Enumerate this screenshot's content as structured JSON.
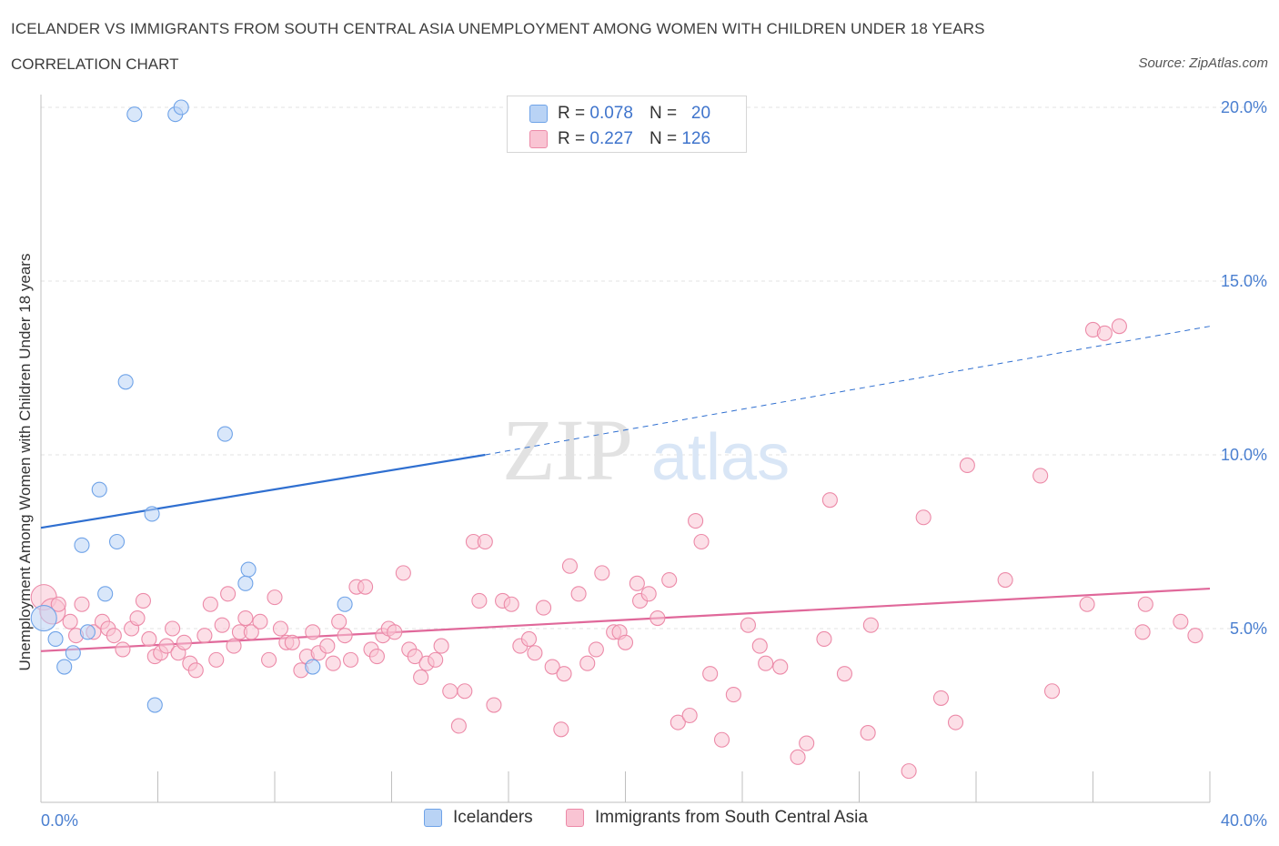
{
  "title": "ICELANDER VS IMMIGRANTS FROM SOUTH CENTRAL ASIA UNEMPLOYMENT AMONG WOMEN WITH CHILDREN UNDER 18 YEARS",
  "subtitle": "CORRELATION CHART",
  "source": "Source: ZipAtlas.com",
  "watermark": {
    "zip": "ZIP",
    "atlas": "atlas"
  },
  "legend": {
    "rows": [
      {
        "r_label": "R =",
        "r_value": "0.078",
        "n_label": "N =",
        "n_value": "20",
        "color": "#b9d3f5"
      },
      {
        "r_label": "R =",
        "r_value": "0.227",
        "n_label": "N =",
        "n_value": "126",
        "color": "#f9c4d3"
      }
    ]
  },
  "bottom_legend": [
    "Icelanders",
    "Immigrants from South Central Asia"
  ],
  "chart_data": {
    "type": "scatter",
    "ylabel": "Unemployment Among Women with Children Under 18 years",
    "xlim": [
      0,
      40
    ],
    "ylim": [
      0,
      20
    ],
    "x_tick_labels": [
      "0.0%",
      "40.0%"
    ],
    "y_tick_labels": [
      "5.0%",
      "10.0%",
      "15.0%",
      "20.0%"
    ],
    "y_ticks": [
      5,
      10,
      15,
      20
    ],
    "x_minor_ticks": [
      4,
      8,
      12,
      16,
      20,
      24,
      28,
      32,
      36,
      40
    ],
    "grid": true,
    "series": [
      {
        "name": "Icelanders",
        "color": "#6fa3e8",
        "fill": "#b9d3f5",
        "trend": {
          "x0": 0,
          "y0": 7.9,
          "x1": 15.2,
          "y1": 10.0,
          "dash_x1": 40,
          "dash_y1": 13.7,
          "color": "#2f6fd0"
        },
        "points": [
          [
            3.2,
            19.8
          ],
          [
            4.6,
            19.8
          ],
          [
            4.8,
            20.0
          ],
          [
            2.9,
            12.1
          ],
          [
            6.3,
            10.6
          ],
          [
            2.0,
            9.0
          ],
          [
            3.8,
            8.3
          ],
          [
            1.4,
            7.4
          ],
          [
            2.6,
            7.5
          ],
          [
            7.1,
            6.7
          ],
          [
            7.0,
            6.3
          ],
          [
            2.2,
            6.0
          ],
          [
            10.4,
            5.7
          ],
          [
            0.1,
            5.3
          ],
          [
            1.6,
            4.9
          ],
          [
            0.5,
            4.7
          ],
          [
            1.1,
            4.3
          ],
          [
            0.8,
            3.9
          ],
          [
            9.3,
            3.9
          ],
          [
            3.9,
            2.8
          ]
        ]
      },
      {
        "name": "Immigrants from South Central Asia",
        "color": "#ec8aa8",
        "fill": "#f9c4d3",
        "trend": {
          "x0": 0,
          "y0": 4.35,
          "x1": 40,
          "y1": 6.15,
          "color": "#e0689a"
        },
        "points": [
          [
            0.1,
            5.9
          ],
          [
            0.4,
            5.5
          ],
          [
            0.6,
            5.7
          ],
          [
            1.0,
            5.2
          ],
          [
            1.4,
            5.7
          ],
          [
            1.2,
            4.8
          ],
          [
            1.8,
            4.9
          ],
          [
            2.1,
            5.2
          ],
          [
            2.3,
            5.0
          ],
          [
            2.5,
            4.8
          ],
          [
            2.8,
            4.4
          ],
          [
            3.1,
            5.0
          ],
          [
            3.3,
            5.3
          ],
          [
            3.5,
            5.8
          ],
          [
            3.7,
            4.7
          ],
          [
            3.9,
            4.2
          ],
          [
            4.1,
            4.3
          ],
          [
            4.3,
            4.5
          ],
          [
            4.5,
            5.0
          ],
          [
            4.7,
            4.3
          ],
          [
            4.9,
            4.6
          ],
          [
            5.1,
            4.0
          ],
          [
            5.3,
            3.8
          ],
          [
            5.6,
            4.8
          ],
          [
            5.8,
            5.7
          ],
          [
            6.0,
            4.1
          ],
          [
            6.2,
            5.1
          ],
          [
            6.4,
            6.0
          ],
          [
            6.6,
            4.5
          ],
          [
            6.8,
            4.9
          ],
          [
            7.0,
            5.3
          ],
          [
            7.2,
            4.9
          ],
          [
            7.5,
            5.2
          ],
          [
            7.8,
            4.1
          ],
          [
            8.0,
            5.9
          ],
          [
            8.2,
            5.0
          ],
          [
            8.4,
            4.6
          ],
          [
            8.6,
            4.6
          ],
          [
            8.9,
            3.8
          ],
          [
            9.1,
            4.2
          ],
          [
            9.3,
            4.9
          ],
          [
            9.5,
            4.3
          ],
          [
            9.8,
            4.5
          ],
          [
            10.0,
            4.0
          ],
          [
            10.2,
            5.2
          ],
          [
            10.4,
            4.8
          ],
          [
            10.6,
            4.1
          ],
          [
            10.8,
            6.2
          ],
          [
            11.1,
            6.2
          ],
          [
            11.3,
            4.4
          ],
          [
            11.5,
            4.2
          ],
          [
            11.7,
            4.8
          ],
          [
            11.9,
            5.0
          ],
          [
            12.1,
            4.9
          ],
          [
            12.4,
            6.6
          ],
          [
            12.6,
            4.4
          ],
          [
            12.8,
            4.2
          ],
          [
            13.0,
            3.6
          ],
          [
            13.2,
            4.0
          ],
          [
            13.5,
            4.1
          ],
          [
            13.7,
            4.5
          ],
          [
            14.0,
            3.2
          ],
          [
            14.3,
            2.2
          ],
          [
            14.5,
            3.2
          ],
          [
            14.8,
            7.5
          ],
          [
            15.2,
            7.5
          ],
          [
            15.0,
            5.8
          ],
          [
            15.5,
            2.8
          ],
          [
            15.8,
            5.8
          ],
          [
            16.1,
            5.7
          ],
          [
            16.4,
            4.5
          ],
          [
            16.7,
            4.7
          ],
          [
            16.9,
            4.3
          ],
          [
            17.2,
            5.6
          ],
          [
            17.5,
            3.9
          ],
          [
            17.8,
            2.1
          ],
          [
            17.9,
            3.7
          ],
          [
            18.1,
            6.8
          ],
          [
            18.4,
            6.0
          ],
          [
            18.7,
            4.0
          ],
          [
            19.2,
            6.6
          ],
          [
            19.0,
            4.4
          ],
          [
            19.6,
            4.9
          ],
          [
            19.8,
            4.9
          ],
          [
            20.0,
            4.6
          ],
          [
            20.5,
            5.8
          ],
          [
            20.4,
            6.3
          ],
          [
            20.8,
            6.0
          ],
          [
            21.1,
            5.3
          ],
          [
            21.5,
            6.4
          ],
          [
            21.8,
            2.3
          ],
          [
            22.2,
            2.5
          ],
          [
            22.4,
            8.1
          ],
          [
            22.6,
            7.5
          ],
          [
            22.9,
            3.7
          ],
          [
            23.3,
            1.8
          ],
          [
            23.7,
            3.1
          ],
          [
            24.2,
            5.1
          ],
          [
            24.6,
            4.5
          ],
          [
            24.8,
            4.0
          ],
          [
            25.3,
            3.9
          ],
          [
            25.9,
            1.3
          ],
          [
            26.2,
            1.7
          ],
          [
            26.8,
            4.7
          ],
          [
            27.0,
            8.7
          ],
          [
            27.5,
            3.7
          ],
          [
            28.4,
            5.1
          ],
          [
            28.3,
            2.0
          ],
          [
            29.7,
            0.9
          ],
          [
            30.2,
            8.2
          ],
          [
            30.8,
            3.0
          ],
          [
            31.3,
            2.3
          ],
          [
            31.7,
            9.7
          ],
          [
            33.0,
            6.4
          ],
          [
            34.2,
            9.4
          ],
          [
            34.6,
            3.2
          ],
          [
            35.8,
            5.7
          ],
          [
            36.0,
            13.6
          ],
          [
            36.4,
            13.5
          ],
          [
            36.9,
            13.7
          ],
          [
            37.7,
            4.9
          ],
          [
            37.8,
            5.7
          ],
          [
            39.0,
            5.2
          ],
          [
            39.5,
            4.8
          ]
        ]
      }
    ]
  }
}
